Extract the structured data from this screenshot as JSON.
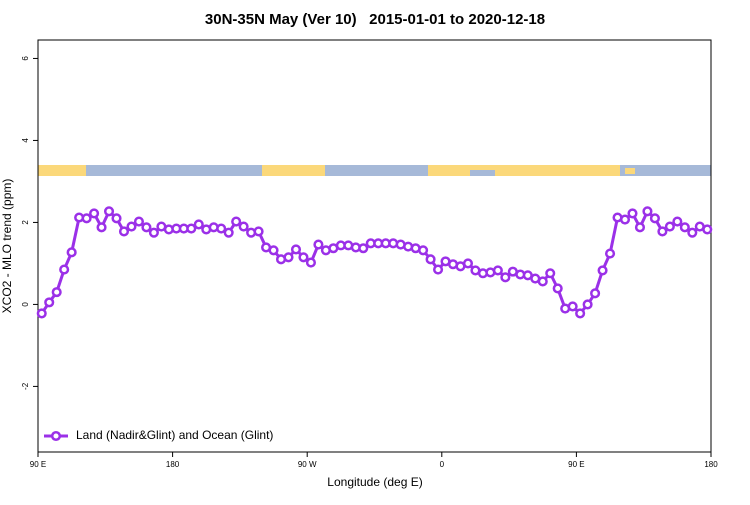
{
  "chart_data": {
    "type": "line",
    "title": "30N-35N May (Ver 10)   2015-01-01 to 2020-12-18",
    "x_label": "Longitude (deg E)",
    "y_label": "XCO2 - MLO trend (ppm)",
    "x": [
      92.5,
      97.5,
      102.5,
      107.5,
      112.5,
      117.5,
      122.5,
      127.5,
      132.5,
      137.5,
      142.5,
      147.5,
      152.5,
      157.5,
      162.5,
      167.5,
      172.5,
      177.5,
      182.5,
      187.5,
      192.5,
      197.5,
      202.5,
      207.5,
      212.5,
      217.5,
      222.5,
      227.5,
      232.5,
      237.5,
      242.5,
      247.5,
      252.5,
      257.5,
      262.5,
      267.5,
      272.5,
      277.5,
      282.5,
      287.5,
      292.5,
      297.5,
      302.5,
      307.5,
      312.5,
      317.5,
      322.5,
      327.5,
      332.5,
      337.5,
      342.5,
      347.5,
      352.5,
      357.5,
      362.5,
      367.5,
      372.5,
      377.5,
      382.5,
      387.5,
      392.5,
      397.5,
      402.5,
      407.5,
      412.5,
      417.5,
      422.5,
      427.5,
      432.5,
      437.5,
      442.5,
      447.5,
      452.5,
      457.5,
      462.5,
      467.5,
      472.5,
      477.5,
      482.5,
      487.5,
      492.5,
      497.5,
      502.5,
      507.5,
      512.5,
      517.5,
      522.5,
      527.5,
      532.5,
      537.5
    ],
    "series": [
      {
        "name": "Land (Nadir&Glint) and Ocean (Glint)",
        "color": "#9b30e8",
        "values": [
          -0.22,
          0.05,
          0.3,
          0.85,
          1.27,
          2.12,
          2.1,
          2.22,
          1.88,
          2.27,
          2.1,
          1.78,
          1.9,
          2.02,
          1.88,
          1.75,
          1.9,
          1.83,
          1.85,
          1.85,
          1.85,
          1.95,
          1.83,
          1.88,
          1.85,
          1.75,
          2.02,
          1.9,
          1.75,
          1.78,
          1.39,
          1.32,
          1.1,
          1.15,
          1.34,
          1.15,
          1.02,
          1.46,
          1.32,
          1.37,
          1.44,
          1.44,
          1.39,
          1.37,
          1.49,
          1.49,
          1.49,
          1.49,
          1.46,
          1.41,
          1.37,
          1.32,
          1.1,
          0.85,
          1.05,
          0.98,
          0.93,
          1.0,
          0.83,
          0.76,
          0.78,
          0.83,
          0.66,
          0.8,
          0.73,
          0.71,
          0.63,
          0.56,
          0.76,
          0.39,
          -0.1,
          -0.05,
          -0.22,
          0,
          0.27,
          0.83,
          1.24,
          2.12,
          2.07,
          2.22,
          1.88,
          2.27,
          2.1,
          1.78,
          1.9,
          2.02,
          1.88,
          1.75,
          1.9,
          1.83
        ]
      }
    ],
    "xlim": [
      90,
      540
    ],
    "xticks": [
      {
        "value": 90,
        "label": "90 E"
      },
      180,
      {
        "value": 270,
        "label": "90 W"
      },
      {
        "value": 360,
        "label": "0"
      },
      {
        "value": 450,
        "label": "90 E"
      },
      {
        "value": 540,
        "label": "180"
      }
    ],
    "ylim": [
      -3.6,
      6.45
    ],
    "yticks": [
      -2,
      0,
      2,
      4,
      6
    ],
    "legend": "bottomleft"
  }
}
